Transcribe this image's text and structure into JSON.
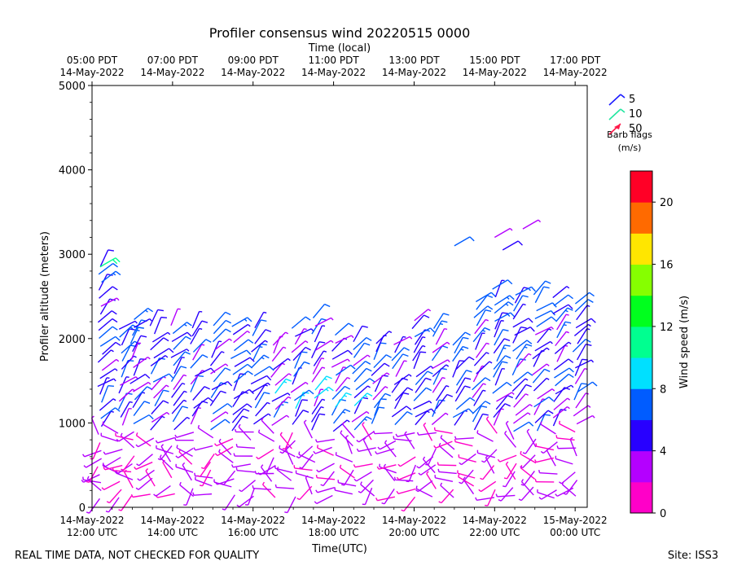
{
  "chart_data": {
    "type": "wind-barb-profile",
    "title": "Profiler consensus wind 20220515 0000",
    "top_axis_label": "Time (local)",
    "xlabel": "Time(UTC)",
    "ylabel": "Profiler altitude (meters)",
    "ylim": [
      0,
      5000
    ],
    "y_ticks": [
      "0",
      "1000",
      "2000",
      "3000",
      "4000",
      "5000"
    ],
    "x_range_hours": [
      0,
      12.3
    ],
    "bottom_ticks": [
      {
        "hour": 0,
        "line1": "14-May-2022",
        "line2": "12:00 UTC"
      },
      {
        "hour": 2,
        "line1": "14-May-2022",
        "line2": "14:00 UTC"
      },
      {
        "hour": 4,
        "line1": "14-May-2022",
        "line2": "16:00 UTC"
      },
      {
        "hour": 6,
        "line1": "14-May-2022",
        "line2": "18:00 UTC"
      },
      {
        "hour": 8,
        "line1": "14-May-2022",
        "line2": "20:00 UTC"
      },
      {
        "hour": 10,
        "line1": "14-May-2022",
        "line2": "22:00 UTC"
      },
      {
        "hour": 12,
        "line1": "15-May-2022",
        "line2": "00:00 UTC"
      }
    ],
    "top_ticks": [
      {
        "hour": 0,
        "line1": "05:00 PDT",
        "line2": "14-May-2022"
      },
      {
        "hour": 2,
        "line1": "07:00 PDT",
        "line2": "14-May-2022"
      },
      {
        "hour": 4,
        "line1": "09:00 PDT",
        "line2": "14-May-2022"
      },
      {
        "hour": 6,
        "line1": "11:00 PDT",
        "line2": "14-May-2022"
      },
      {
        "hour": 8,
        "line1": "13:00 PDT",
        "line2": "14-May-2022"
      },
      {
        "hour": 10,
        "line1": "15:00 PDT",
        "line2": "14-May-2022"
      },
      {
        "hour": 12,
        "line1": "17:00 PDT",
        "line2": "14-May-2022"
      }
    ],
    "profile_times_hours": [
      0.2,
      0.7,
      1.0,
      1.5,
      2.0,
      2.5,
      3.0,
      3.5,
      4.0,
      4.5,
      5.0,
      5.5,
      6.0,
      6.5,
      7.0,
      7.5,
      8.0,
      8.5,
      9.0,
      9.5,
      10.0,
      10.5,
      11.0,
      11.5,
      12.0
    ],
    "barb_legend": {
      "entries": [
        {
          "label": "5",
          "speed": 5,
          "color": "#1a1aff"
        },
        {
          "label": "10",
          "speed": 10,
          "color": "#22e6a0"
        },
        {
          "label": "50",
          "speed": 50,
          "color": "#ff1a4a"
        }
      ],
      "caption_line1": "Barb flags",
      "caption_line2": "(m/s)"
    },
    "colorbar": {
      "label": "Wind speed (m/s)",
      "min": 0,
      "max": 22,
      "step": 2,
      "tick_labels": [
        "0",
        "4",
        "8",
        "12",
        "16",
        "20"
      ],
      "tick_values": [
        0,
        4,
        8,
        12,
        16,
        20
      ],
      "colors": [
        "#ff00c8",
        "#b400ff",
        "#2800ff",
        "#005cff",
        "#00e0ff",
        "#00ff90",
        "#00ff1e",
        "#86ff00",
        "#ffe600",
        "#ff6a00",
        "#ff0026"
      ]
    }
  },
  "footer": {
    "left": "REAL TIME DATA, NOT CHECKED FOR QUALITY",
    "right": "Site: ISS3"
  }
}
